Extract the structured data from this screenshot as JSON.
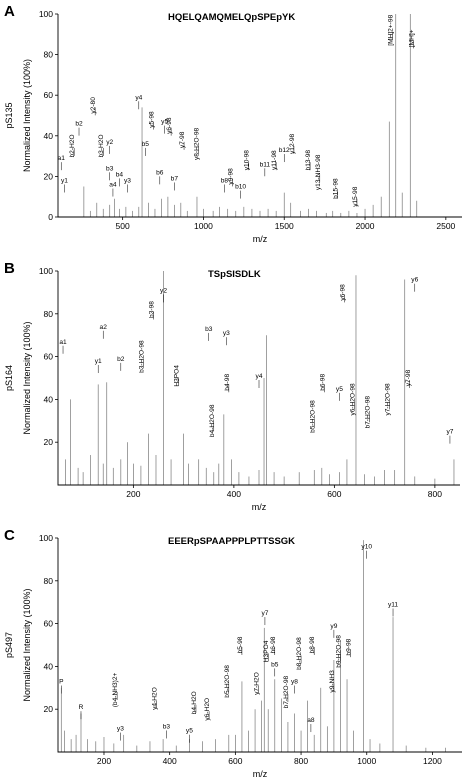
{
  "chart_data": [
    {
      "type": "bar",
      "panel_label": "A",
      "title": "HQELQAMQMELQpSPEpYK",
      "side_label": "pS135",
      "xlabel": "m/z",
      "ylabel": "Normalized Intensity (100%)",
      "xlim": [
        100,
        2600
      ],
      "ylim": [
        0,
        100
      ],
      "x_ticks": [
        500,
        1000,
        1500,
        2000,
        2500
      ],
      "y_ticks": [
        0,
        20,
        40,
        60,
        80,
        100
      ],
      "peaks": [
        {
          "x": 260,
          "y": 15
        },
        {
          "x": 300,
          "y": 3
        },
        {
          "x": 340,
          "y": 7
        },
        {
          "x": 380,
          "y": 4
        },
        {
          "x": 420,
          "y": 6
        },
        {
          "x": 450,
          "y": 9
        },
        {
          "x": 480,
          "y": 4
        },
        {
          "x": 520,
          "y": 5
        },
        {
          "x": 560,
          "y": 3
        },
        {
          "x": 600,
          "y": 5
        },
        {
          "x": 620,
          "y": 54
        },
        {
          "x": 660,
          "y": 7
        },
        {
          "x": 700,
          "y": 4
        },
        {
          "x": 740,
          "y": 9
        },
        {
          "x": 780,
          "y": 10
        },
        {
          "x": 820,
          "y": 6
        },
        {
          "x": 860,
          "y": 7
        },
        {
          "x": 900,
          "y": 3
        },
        {
          "x": 960,
          "y": 10
        },
        {
          "x": 1000,
          "y": 4
        },
        {
          "x": 1060,
          "y": 3
        },
        {
          "x": 1100,
          "y": 5
        },
        {
          "x": 1150,
          "y": 4
        },
        {
          "x": 1200,
          "y": 3
        },
        {
          "x": 1250,
          "y": 5
        },
        {
          "x": 1300,
          "y": 4
        },
        {
          "x": 1350,
          "y": 3
        },
        {
          "x": 1400,
          "y": 4
        },
        {
          "x": 1450,
          "y": 3
        },
        {
          "x": 1500,
          "y": 12
        },
        {
          "x": 1540,
          "y": 7
        },
        {
          "x": 1600,
          "y": 3
        },
        {
          "x": 1650,
          "y": 4
        },
        {
          "x": 1700,
          "y": 3
        },
        {
          "x": 1760,
          "y": 2
        },
        {
          "x": 1800,
          "y": 3
        },
        {
          "x": 1850,
          "y": 2
        },
        {
          "x": 1900,
          "y": 3
        },
        {
          "x": 1950,
          "y": 2
        },
        {
          "x": 2000,
          "y": 4
        },
        {
          "x": 2050,
          "y": 6
        },
        {
          "x": 2100,
          "y": 10
        },
        {
          "x": 2150,
          "y": 47
        },
        {
          "x": 2190,
          "y": 100
        },
        {
          "x": 2230,
          "y": 12
        },
        {
          "x": 2280,
          "y": 100
        },
        {
          "x": 2320,
          "y": 8
        }
      ],
      "annotations": [
        {
          "text": "b2",
          "x": 230,
          "y": 45
        },
        {
          "text": "b2-H2O",
          "x": 200,
          "y": 35
        },
        {
          "text": "a1",
          "x": 120,
          "y": 28
        },
        {
          "text": "y1",
          "x": 140,
          "y": 17
        },
        {
          "text": "y2-80",
          "x": 330,
          "y": 55
        },
        {
          "text": "y4",
          "x": 600,
          "y": 58
        },
        {
          "text": "b3-H2O",
          "x": 380,
          "y": 35
        },
        {
          "text": "y2",
          "x": 420,
          "y": 36
        },
        {
          "text": "b3",
          "x": 420,
          "y": 23
        },
        {
          "text": "b4",
          "x": 480,
          "y": 20
        },
        {
          "text": "a4",
          "x": 440,
          "y": 15
        },
        {
          "text": "y3",
          "x": 530,
          "y": 17
        },
        {
          "text": "b5",
          "x": 640,
          "y": 35
        },
        {
          "text": "y5-98",
          "x": 690,
          "y": 48
        },
        {
          "text": "y5",
          "x": 760,
          "y": 46
        },
        {
          "text": "y6-98",
          "x": 800,
          "y": 45
        },
        {
          "text": "b6",
          "x": 730,
          "y": 21
        },
        {
          "text": "b7",
          "x": 820,
          "y": 18
        },
        {
          "text": "y7-98",
          "x": 880,
          "y": 38
        },
        {
          "text": "y8-H2O-98",
          "x": 970,
          "y": 36
        },
        {
          "text": "b8",
          "x": 1130,
          "y": 17
        },
        {
          "text": "y9-98",
          "x": 1180,
          "y": 20
        },
        {
          "text": "b10",
          "x": 1230,
          "y": 14
        },
        {
          "text": "y10-98",
          "x": 1280,
          "y": 28
        },
        {
          "text": "b11",
          "x": 1380,
          "y": 25
        },
        {
          "text": "y11-98",
          "x": 1450,
          "y": 28
        },
        {
          "text": "b12",
          "x": 1500,
          "y": 32
        },
        {
          "text": "y12-98",
          "x": 1560,
          "y": 36
        },
        {
          "text": "b13-98",
          "x": 1660,
          "y": 28
        },
        {
          "text": "y13-NH3-98",
          "x": 1720,
          "y": 22
        },
        {
          "text": "b15-98",
          "x": 1830,
          "y": 14
        },
        {
          "text": "y15-98",
          "x": 1950,
          "y": 10
        },
        {
          "text": "[MH]2+-98",
          "x": 2170,
          "y": 92
        },
        {
          "text": "[MH]+",
          "x": 2300,
          "y": 88
        }
      ]
    },
    {
      "type": "bar",
      "panel_label": "B",
      "title": "TSpSISDLK",
      "side_label": "pS164",
      "xlabel": "m/z",
      "ylabel": "Normalized Intensity (100%)",
      "xlim": [
        50,
        850
      ],
      "ylim": [
        0,
        100
      ],
      "x_ticks": [
        200,
        400,
        600,
        800
      ],
      "y_ticks": [
        20,
        40,
        60,
        80,
        100
      ],
      "peaks": [
        {
          "x": 65,
          "y": 12
        },
        {
          "x": 75,
          "y": 40
        },
        {
          "x": 90,
          "y": 8
        },
        {
          "x": 100,
          "y": 6
        },
        {
          "x": 115,
          "y": 14
        },
        {
          "x": 130,
          "y": 47
        },
        {
          "x": 140,
          "y": 10
        },
        {
          "x": 147,
          "y": 48
        },
        {
          "x": 160,
          "y": 8
        },
        {
          "x": 175,
          "y": 12
        },
        {
          "x": 188,
          "y": 20
        },
        {
          "x": 200,
          "y": 10
        },
        {
          "x": 215,
          "y": 9
        },
        {
          "x": 230,
          "y": 24
        },
        {
          "x": 245,
          "y": 14
        },
        {
          "x": 260,
          "y": 100
        },
        {
          "x": 275,
          "y": 12
        },
        {
          "x": 300,
          "y": 24
        },
        {
          "x": 310,
          "y": 10
        },
        {
          "x": 330,
          "y": 12
        },
        {
          "x": 345,
          "y": 8
        },
        {
          "x": 360,
          "y": 6
        },
        {
          "x": 370,
          "y": 10
        },
        {
          "x": 380,
          "y": 33
        },
        {
          "x": 395,
          "y": 12
        },
        {
          "x": 410,
          "y": 6
        },
        {
          "x": 430,
          "y": 4
        },
        {
          "x": 450,
          "y": 7
        },
        {
          "x": 460,
          "y": 50
        },
        {
          "x": 465,
          "y": 70
        },
        {
          "x": 480,
          "y": 6
        },
        {
          "x": 500,
          "y": 4
        },
        {
          "x": 530,
          "y": 6
        },
        {
          "x": 560,
          "y": 7
        },
        {
          "x": 575,
          "y": 8
        },
        {
          "x": 590,
          "y": 5
        },
        {
          "x": 610,
          "y": 6
        },
        {
          "x": 625,
          "y": 12
        },
        {
          "x": 643,
          "y": 98
        },
        {
          "x": 660,
          "y": 5
        },
        {
          "x": 680,
          "y": 4
        },
        {
          "x": 700,
          "y": 7
        },
        {
          "x": 720,
          "y": 7
        },
        {
          "x": 740,
          "y": 96
        },
        {
          "x": 760,
          "y": 4
        },
        {
          "x": 800,
          "y": 3
        },
        {
          "x": 838,
          "y": 12
        }
      ],
      "annotations": [
        {
          "text": "y2",
          "x": 260,
          "y": 90
        },
        {
          "text": "a1",
          "x": 60,
          "y": 66
        },
        {
          "text": "y1",
          "x": 130,
          "y": 57
        },
        {
          "text": "a2",
          "x": 140,
          "y": 73
        },
        {
          "text": "b2",
          "x": 175,
          "y": 58
        },
        {
          "text": "b3-98",
          "x": 240,
          "y": 82
        },
        {
          "text": "b3-H2O-98",
          "x": 220,
          "y": 60
        },
        {
          "text": "H3PO4",
          "x": 290,
          "y": 51
        },
        {
          "text": "b3",
          "x": 350,
          "y": 72
        },
        {
          "text": "y3",
          "x": 385,
          "y": 70
        },
        {
          "text": "b4-98",
          "x": 390,
          "y": 48
        },
        {
          "text": "b4-H2O-98",
          "x": 360,
          "y": 30
        },
        {
          "text": "y4",
          "x": 450,
          "y": 50
        },
        {
          "text": "b5-H2O-98",
          "x": 560,
          "y": 32
        },
        {
          "text": "b6-98",
          "x": 580,
          "y": 48
        },
        {
          "text": "y5",
          "x": 610,
          "y": 44
        },
        {
          "text": "y6-98",
          "x": 620,
          "y": 90
        },
        {
          "text": "y6-H2O-98",
          "x": 640,
          "y": 40
        },
        {
          "text": "y6",
          "x": 760,
          "y": 95
        },
        {
          "text": "b7-H2O-98",
          "x": 670,
          "y": 34
        },
        {
          "text": "y7-H2O-98",
          "x": 710,
          "y": 40
        },
        {
          "text": "y7-98",
          "x": 750,
          "y": 50
        },
        {
          "text": "y7",
          "x": 830,
          "y": 24
        }
      ]
    },
    {
      "type": "bar",
      "panel_label": "C",
      "title": "EEERpSPAAPPPLPTTSSGK",
      "side_label": "pS497",
      "xlabel": "m/z",
      "ylabel": "Normalized Intensity (100%)",
      "xlim": [
        60,
        1290
      ],
      "ylim": [
        0,
        100
      ],
      "x_ticks": [
        200,
        400,
        600,
        800,
        1000,
        1200
      ],
      "y_ticks": [
        20,
        40,
        60,
        80,
        100
      ],
      "peaks": [
        {
          "x": 70,
          "y": 30
        },
        {
          "x": 80,
          "y": 10
        },
        {
          "x": 100,
          "y": 6
        },
        {
          "x": 115,
          "y": 8
        },
        {
          "x": 130,
          "y": 18
        },
        {
          "x": 150,
          "y": 6
        },
        {
          "x": 175,
          "y": 5
        },
        {
          "x": 200,
          "y": 7
        },
        {
          "x": 230,
          "y": 4
        },
        {
          "x": 260,
          "y": 8
        },
        {
          "x": 300,
          "y": 3
        },
        {
          "x": 340,
          "y": 5
        },
        {
          "x": 380,
          "y": 6
        },
        {
          "x": 420,
          "y": 3
        },
        {
          "x": 460,
          "y": 6
        },
        {
          "x": 500,
          "y": 5
        },
        {
          "x": 540,
          "y": 6
        },
        {
          "x": 580,
          "y": 8
        },
        {
          "x": 600,
          "y": 8
        },
        {
          "x": 620,
          "y": 33
        },
        {
          "x": 640,
          "y": 10
        },
        {
          "x": 660,
          "y": 20
        },
        {
          "x": 680,
          "y": 24
        },
        {
          "x": 688,
          "y": 58
        },
        {
          "x": 700,
          "y": 20
        },
        {
          "x": 720,
          "y": 34
        },
        {
          "x": 740,
          "y": 25
        },
        {
          "x": 760,
          "y": 14
        },
        {
          "x": 780,
          "y": 18
        },
        {
          "x": 800,
          "y": 10
        },
        {
          "x": 820,
          "y": 24
        },
        {
          "x": 840,
          "y": 8
        },
        {
          "x": 860,
          "y": 30
        },
        {
          "x": 880,
          "y": 12
        },
        {
          "x": 900,
          "y": 43
        },
        {
          "x": 920,
          "y": 52
        },
        {
          "x": 940,
          "y": 34
        },
        {
          "x": 960,
          "y": 10
        },
        {
          "x": 990,
          "y": 99
        },
        {
          "x": 1010,
          "y": 6
        },
        {
          "x": 1040,
          "y": 4
        },
        {
          "x": 1080,
          "y": 63
        },
        {
          "x": 1120,
          "y": 3
        },
        {
          "x": 1180,
          "y": 2
        },
        {
          "x": 1240,
          "y": 2
        }
      ],
      "annotations": [
        {
          "text": "P",
          "x": 70,
          "y": 32
        },
        {
          "text": "R",
          "x": 130,
          "y": 20
        },
        {
          "text": "(b4-NH3)2+",
          "x": 240,
          "y": 29
        },
        {
          "text": "y3",
          "x": 250,
          "y": 10
        },
        {
          "text": "y4-H2O",
          "x": 360,
          "y": 25
        },
        {
          "text": "b3",
          "x": 390,
          "y": 11
        },
        {
          "text": "y5",
          "x": 460,
          "y": 9
        },
        {
          "text": "b4-H2O",
          "x": 480,
          "y": 23
        },
        {
          "text": "y6-H2O",
          "x": 520,
          "y": 20
        },
        {
          "text": "b5-H2O-98",
          "x": 580,
          "y": 33
        },
        {
          "text": "b5-98",
          "x": 620,
          "y": 50
        },
        {
          "text": "y7",
          "x": 690,
          "y": 64
        },
        {
          "text": "H3PO4",
          "x": 700,
          "y": 47
        },
        {
          "text": "y7-H2O",
          "x": 670,
          "y": 32
        },
        {
          "text": "b5",
          "x": 720,
          "y": 40
        },
        {
          "text": "b6-98",
          "x": 720,
          "y": 50
        },
        {
          "text": "y8",
          "x": 780,
          "y": 32
        },
        {
          "text": "b7-H2O-98",
          "x": 760,
          "y": 28
        },
        {
          "text": "b8-H2O-98",
          "x": 800,
          "y": 46
        },
        {
          "text": "b8-98",
          "x": 840,
          "y": 50
        },
        {
          "text": "a8",
          "x": 830,
          "y": 14
        },
        {
          "text": "y9",
          "x": 900,
          "y": 58
        },
        {
          "text": "y9-NH3",
          "x": 900,
          "y": 33
        },
        {
          "text": "b9-H2O-98",
          "x": 920,
          "y": 47
        },
        {
          "text": "b9-98",
          "x": 950,
          "y": 49
        },
        {
          "text": "y10",
          "x": 1000,
          "y": 95
        },
        {
          "text": "y11",
          "x": 1080,
          "y": 68
        }
      ]
    }
  ]
}
